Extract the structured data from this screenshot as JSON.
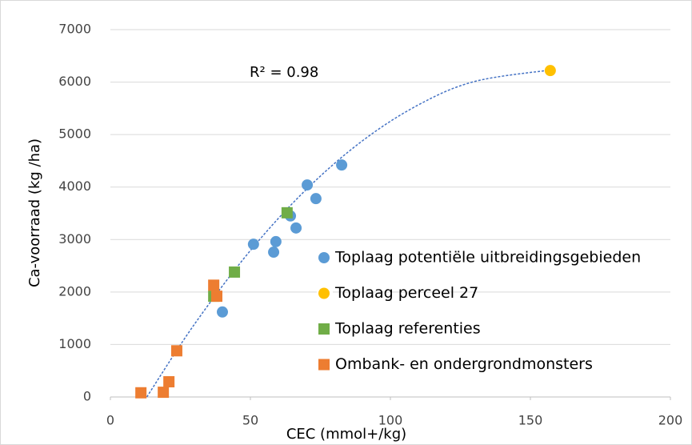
{
  "chart_data": {
    "type": "scatter",
    "x_label": "CEC (mmol+/kg)",
    "y_label": "Ca-voorraad (kg /ha)",
    "annotation": "R² = 0.98",
    "xlim": [
      0,
      200
    ],
    "xticks": [
      0,
      50,
      100,
      150,
      200
    ],
    "ylim": [
      0,
      7000
    ],
    "yticks": [
      0,
      1000,
      2000,
      3000,
      4000,
      5000,
      6000,
      7000
    ],
    "grid": true,
    "series": [
      {
        "name": "Toplaag potentiële uitbreidingsgebieden",
        "color": "#5b9bd5",
        "marker": "circle",
        "x": [
          82.6,
          70.3,
          73.4,
          64.3,
          66.3,
          59.1,
          58.3,
          51.1,
          40.0
        ],
        "y": [
          4420,
          4040,
          3780,
          3450,
          3220,
          2960,
          2760,
          2910,
          1620
        ]
      },
      {
        "name": "Toplaag perceel 27",
        "color": "#ffc000",
        "marker": "circle",
        "x": [
          157.1
        ],
        "y": [
          6220
        ]
      },
      {
        "name": "Toplaag referenties",
        "color": "#70ad47",
        "marker": "square",
        "x": [
          63.1,
          44.3,
          36.9
        ],
        "y": [
          3510,
          2380,
          1920
        ]
      },
      {
        "name": "Ombank- en ondergrondmonsters",
        "color": "#ed7d31",
        "marker": "square",
        "x": [
          36.9,
          38.0,
          23.7,
          20.9,
          18.9,
          10.9
        ],
        "y": [
          2130,
          1920,
          880,
          290,
          90,
          80
        ]
      }
    ],
    "trendline": {
      "color": "#4472c4",
      "x": [
        13,
        30,
        50,
        70,
        90,
        110,
        130,
        157
      ],
      "y": [
        0,
        1385,
        2791,
        3956,
        4881,
        5566,
        6011,
        6230
      ]
    }
  }
}
